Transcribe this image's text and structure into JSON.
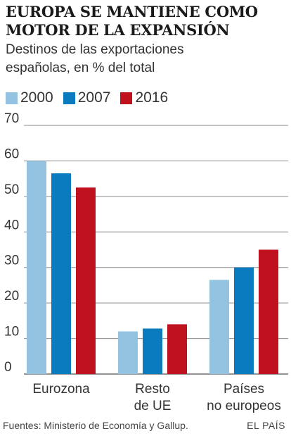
{
  "title_line1": "EUROPA SE MANTIENE COMO",
  "title_line2": "MOTOR DE LA EXPANSIÓN",
  "subtitle_line1": "Destinos de las exportaciones",
  "subtitle_line2": "españolas, en % del total",
  "footer": "Fuentes: Ministerio de Economía y Gallup.",
  "brand": "EL PAÍS",
  "chart_data": {
    "type": "bar",
    "categories": [
      [
        "Eurozona"
      ],
      [
        "Resto",
        "de UE"
      ],
      [
        "Países",
        "no europeos"
      ]
    ],
    "series": [
      {
        "name": "2000",
        "color": "#94c2e1",
        "values": [
          60,
          12,
          26.5
        ]
      },
      {
        "name": "2007",
        "color": "#0b7bbf",
        "values": [
          56.5,
          12.8,
          30
        ]
      },
      {
        "name": "2016",
        "color": "#c0111f",
        "values": [
          52.5,
          14,
          35
        ]
      }
    ],
    "ylim": [
      0,
      70
    ],
    "yticks": [
      0,
      10,
      20,
      30,
      40,
      50,
      60,
      70
    ],
    "grid": true,
    "legend": "top-left"
  }
}
